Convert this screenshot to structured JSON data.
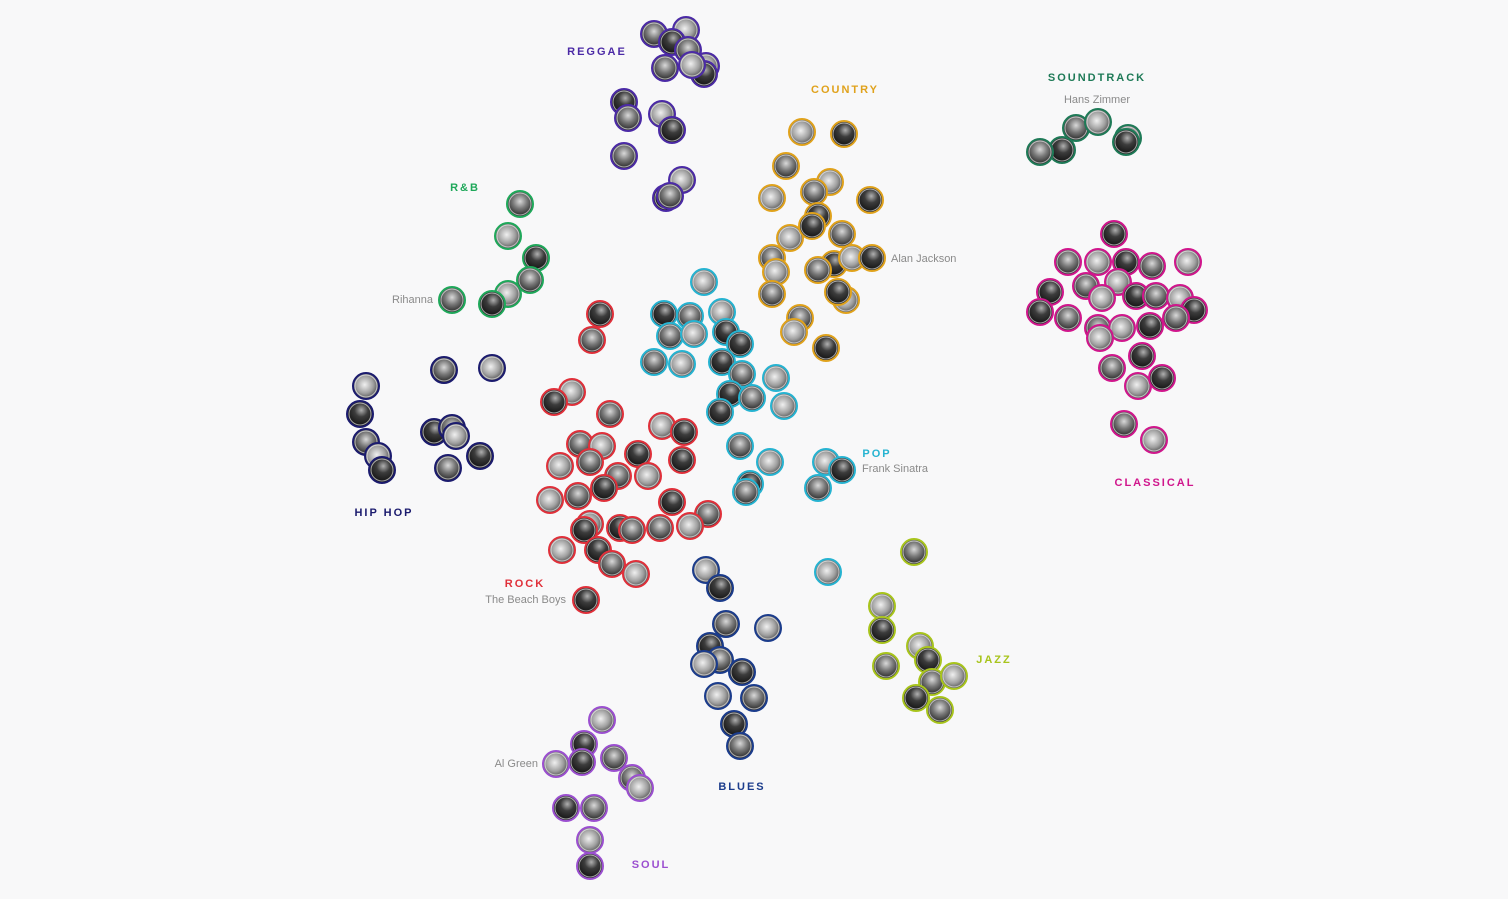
{
  "colors": {
    "reggae": "#4b2aa6",
    "country": "#e0a21c",
    "soundtrack": "#1e7a57",
    "rnb": "#1fa85a",
    "hiphop": "#1b1b6e",
    "pop": "#26b3d1",
    "classical": "#d0168c",
    "rock": "#e0303a",
    "jazz": "#a8c41c",
    "blues": "#1b3c8c",
    "soul": "#9b4fd0"
  },
  "genres": {
    "reggae": "REGGAE",
    "country": "COUNTRY",
    "soundtrack": "SOUNDTRACK",
    "rnb": "R&B",
    "hiphop": "HIP HOP",
    "pop": "POP",
    "classical": "CLASSICAL",
    "rock": "ROCK",
    "jazz": "JAZZ",
    "blues": "BLUES",
    "soul": "SOUL"
  },
  "artists": {
    "soundtrack": "Hans Zimmer",
    "country": "Alan Jackson",
    "rnb": "Rihanna",
    "pop": "Frank Sinatra",
    "rock": "The Beach Boys",
    "soul": "Al Green"
  }
}
